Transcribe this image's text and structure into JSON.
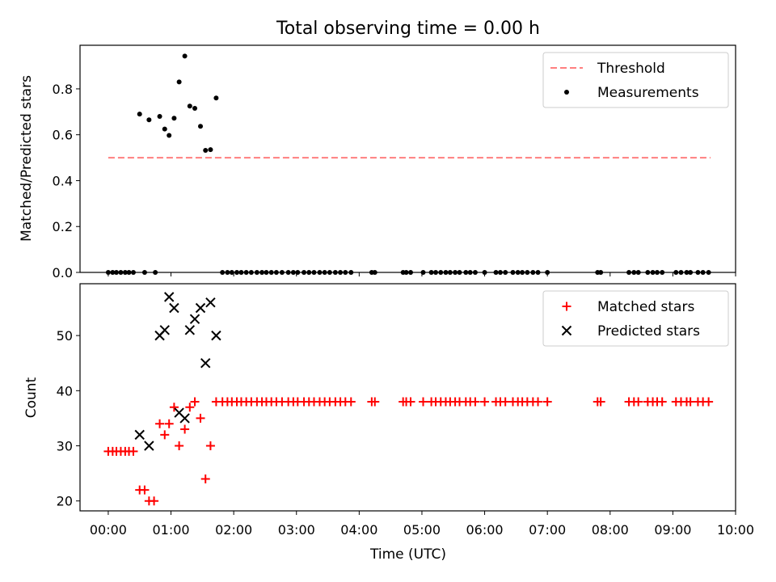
{
  "chart_data": [
    {
      "type": "scatter",
      "title": "Total observing time = 0.00 h",
      "xlabel": "",
      "ylabel": "Matched/Predicted stars",
      "xlim": [
        -0.45,
        10.0
      ],
      "ylim": [
        0.0,
        0.99
      ],
      "yticks": [
        0.0,
        0.2,
        0.4,
        0.6,
        0.8
      ],
      "ytick_labels": [
        "0.0",
        "0.2",
        "0.4",
        "0.6",
        "0.8"
      ],
      "grid": false,
      "legend_position": "top-right",
      "legend": [
        "Threshold",
        "Measurements"
      ],
      "threshold": {
        "name": "Threshold",
        "value": 0.5,
        "x_range": [
          0.0,
          9.6
        ],
        "color": "#ff7f7f",
        "style": "dashed"
      },
      "series": [
        {
          "name": "Measurements",
          "marker": "dot",
          "color": "#000000",
          "x": [
            0.0,
            0.07,
            0.13,
            0.2,
            0.27,
            0.33,
            0.4,
            0.5,
            0.58,
            0.65,
            0.75,
            0.82,
            0.9,
            0.97,
            1.05,
            1.13,
            1.22,
            1.3,
            1.38,
            1.47,
            1.55,
            1.63,
            1.72,
            1.82,
            1.9,
            1.97,
            2.05,
            2.12,
            2.2,
            2.28,
            2.37,
            2.45,
            2.52,
            2.6,
            2.68,
            2.77,
            2.87,
            2.95,
            3.02,
            3.12,
            3.2,
            3.28,
            3.37,
            3.45,
            3.53,
            3.62,
            3.7,
            3.78,
            3.87,
            4.2,
            4.25,
            4.7,
            4.75,
            4.82,
            5.02,
            5.15,
            5.22,
            5.3,
            5.38,
            5.45,
            5.53,
            5.6,
            5.7,
            5.77,
            5.85,
            6.0,
            6.18,
            6.25,
            6.33,
            6.45,
            6.53,
            6.6,
            6.68,
            6.77,
            6.85,
            7.0,
            7.8,
            7.85,
            8.3,
            8.38,
            8.45,
            8.6,
            8.68,
            8.75,
            8.83,
            9.05,
            9.13,
            9.22,
            9.28,
            9.4,
            9.48,
            9.57
          ],
          "y": [
            0.0,
            0.0,
            0.0,
            0.0,
            0.0,
            0.0,
            0.0,
            0.69,
            0.0,
            0.665,
            0.0,
            0.68,
            0.625,
            0.597,
            0.672,
            0.83,
            0.943,
            0.725,
            0.715,
            0.637,
            0.532,
            0.535,
            0.76,
            0.0,
            0.0,
            0.0,
            0.0,
            0.0,
            0.0,
            0.0,
            0.0,
            0.0,
            0.0,
            0.0,
            0.0,
            0.0,
            0.0,
            0.0,
            0.0,
            0.0,
            0.0,
            0.0,
            0.0,
            0.0,
            0.0,
            0.0,
            0.0,
            0.0,
            0.0,
            0.0,
            0.0,
            0.0,
            0.0,
            0.0,
            0.0,
            0.0,
            0.0,
            0.0,
            0.0,
            0.0,
            0.0,
            0.0,
            0.0,
            0.0,
            0.0,
            0.0,
            0.0,
            0.0,
            0.0,
            0.0,
            0.0,
            0.0,
            0.0,
            0.0,
            0.0,
            0.0,
            0.0,
            0.0,
            0.0,
            0.0,
            0.0,
            0.0,
            0.0,
            0.0,
            0.0,
            0.0,
            0.0,
            0.0,
            0.0,
            0.0,
            0.0,
            0.0
          ]
        }
      ]
    },
    {
      "type": "scatter",
      "title": "",
      "xlabel": "Time (UTC)",
      "ylabel": "Count",
      "xlim": [
        -0.45,
        10.0
      ],
      "ylim": [
        18.2,
        59.4
      ],
      "yticks": [
        20,
        30,
        40,
        50
      ],
      "ytick_labels": [
        "20",
        "30",
        "40",
        "50"
      ],
      "xticks": [
        0,
        1,
        2,
        3,
        4,
        5,
        6,
        7,
        8,
        9,
        10
      ],
      "xtick_labels": [
        "00:00",
        "01:00",
        "02:00",
        "03:00",
        "04:00",
        "05:00",
        "06:00",
        "07:00",
        "08:00",
        "09:00",
        "10:00"
      ],
      "grid": false,
      "legend_position": "top-right",
      "legend": [
        "Matched stars",
        "Predicted stars"
      ],
      "series": [
        {
          "name": "Matched stars",
          "marker": "plus",
          "color": "#ff0000",
          "x": [
            0.0,
            0.07,
            0.13,
            0.2,
            0.27,
            0.33,
            0.4,
            0.5,
            0.58,
            0.65,
            0.73,
            0.82,
            0.9,
            0.97,
            1.05,
            1.13,
            1.22,
            1.3,
            1.38,
            1.47,
            1.55,
            1.63,
            1.72,
            1.82,
            1.9,
            1.97,
            2.05,
            2.12,
            2.2,
            2.28,
            2.37,
            2.45,
            2.52,
            2.6,
            2.68,
            2.77,
            2.87,
            2.95,
            3.02,
            3.12,
            3.2,
            3.28,
            3.37,
            3.45,
            3.53,
            3.62,
            3.7,
            3.78,
            3.87,
            4.2,
            4.25,
            4.7,
            4.75,
            4.82,
            5.02,
            5.15,
            5.22,
            5.3,
            5.38,
            5.45,
            5.53,
            5.6,
            5.7,
            5.77,
            5.85,
            6.0,
            6.18,
            6.25,
            6.33,
            6.45,
            6.53,
            6.6,
            6.68,
            6.77,
            6.85,
            7.0,
            7.8,
            7.85,
            8.3,
            8.38,
            8.45,
            8.6,
            8.68,
            8.75,
            8.83,
            9.05,
            9.13,
            9.22,
            9.28,
            9.4,
            9.48,
            9.57
          ],
          "y": [
            29,
            29,
            29,
            29,
            29,
            29,
            29,
            22,
            22,
            20,
            20,
            34,
            32,
            34,
            37,
            30,
            33,
            37,
            38,
            35,
            24,
            30,
            38,
            38,
            38,
            38,
            38,
            38,
            38,
            38,
            38,
            38,
            38,
            38,
            38,
            38,
            38,
            38,
            38,
            38,
            38,
            38,
            38,
            38,
            38,
            38,
            38,
            38,
            38,
            38,
            38,
            38,
            38,
            38,
            38,
            38,
            38,
            38,
            38,
            38,
            38,
            38,
            38,
            38,
            38,
            38,
            38,
            38,
            38,
            38,
            38,
            38,
            38,
            38,
            38,
            38,
            38,
            38,
            38,
            38,
            38,
            38,
            38,
            38,
            38,
            38,
            38,
            38,
            38,
            38,
            38,
            38
          ]
        },
        {
          "name": "Predicted stars",
          "marker": "x",
          "color": "#000000",
          "x": [
            0.5,
            0.65,
            0.82,
            0.9,
            0.97,
            1.05,
            1.13,
            1.22,
            1.3,
            1.38,
            1.47,
            1.55,
            1.63,
            1.72
          ],
          "y": [
            32,
            30,
            50,
            51,
            57,
            55,
            36,
            35,
            51,
            53,
            55,
            45,
            56,
            50
          ]
        }
      ]
    }
  ]
}
